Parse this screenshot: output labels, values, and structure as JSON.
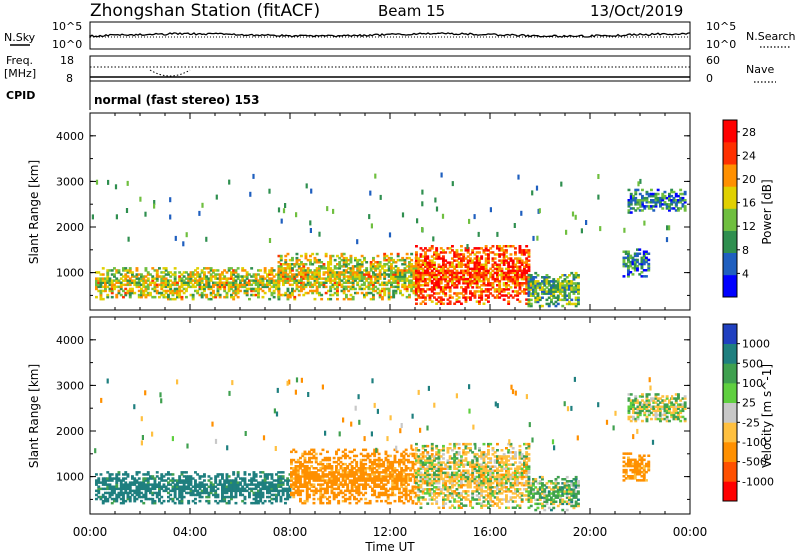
{
  "header": {
    "station": "Zhongshan Station (fitACF)",
    "beam": "Beam 15",
    "date": "13/Oct/2019"
  },
  "noise_panel": {
    "left_label": "N.Sky",
    "right_label": "N.Search",
    "ticks": [
      "10^5",
      "10^0"
    ]
  },
  "freq_panel": {
    "left_label_1": "Freq.",
    "left_label_2": "[MHz]",
    "left_ticks": [
      "18",
      "8"
    ],
    "right_label": "Nave",
    "right_ticks": [
      "60",
      "0"
    ]
  },
  "cpid": {
    "label": "CPID",
    "mode": "normal (fast stereo) 153"
  },
  "axes": {
    "ylabel": "Slant Range [km]",
    "xlabel": "Time UT",
    "y_ticks": [
      "4000",
      "3000",
      "2000",
      "1000"
    ],
    "x_ticks": [
      "00:00",
      "04:00",
      "08:00",
      "12:00",
      "16:00",
      "20:00",
      "00:00"
    ]
  },
  "chart_data": [
    {
      "type": "heatmap",
      "title": "",
      "xlabel": "Time UT",
      "ylabel": "Slant Range [km]",
      "x_range_hours": [
        0,
        24
      ],
      "y_range_km": [
        180,
        4500
      ],
      "colorbar": {
        "label": "Power [dB]",
        "ticks": [
          "28",
          "24",
          "20",
          "16",
          "12",
          "8",
          "4"
        ],
        "tick_values": [
          28,
          24,
          20,
          16,
          12,
          8,
          4
        ],
        "range": [
          0,
          30
        ],
        "colors": [
          "#0000ff",
          "#1f5fbf",
          "#2f8f4f",
          "#6fbf3f",
          "#e0d000",
          "#ff9000",
          "#ff3000",
          "#ff0000"
        ]
      },
      "echo_regions": [
        {
          "t_start": 0.2,
          "t_end": 7.5,
          "r_min": 400,
          "r_max": 1100,
          "level": 16
        },
        {
          "t_start": 7.5,
          "t_end": 13.0,
          "r_min": 400,
          "r_max": 1400,
          "level": 16
        },
        {
          "t_start": 13.0,
          "t_end": 17.5,
          "r_min": 300,
          "r_max": 1600,
          "level": 24
        },
        {
          "t_start": 17.5,
          "t_end": 19.5,
          "r_min": 250,
          "r_max": 1000,
          "level": 12
        },
        {
          "t_start": 21.5,
          "t_end": 23.8,
          "r_min": 2300,
          "r_max": 2800,
          "level": 8
        },
        {
          "t_start": 21.3,
          "t_end": 22.3,
          "r_min": 900,
          "r_max": 1500,
          "level": 8
        }
      ]
    },
    {
      "type": "heatmap",
      "title": "",
      "xlabel": "Time UT",
      "ylabel": "Slant Range [km]",
      "x_range_hours": [
        0,
        24
      ],
      "y_range_km": [
        180,
        4500
      ],
      "colorbar": {
        "label": "Velocity [m s^-1]",
        "ticks": [
          "1000",
          "500",
          "100",
          "25",
          "-25",
          "-100",
          "-500",
          "-1000"
        ],
        "tick_values": [
          1000,
          500,
          100,
          25,
          -25,
          -100,
          -500,
          -1000
        ],
        "colors": [
          "#2040c0",
          "#1f7f7f",
          "#3fa04f",
          "#5fcf3f",
          "#c8c8c8",
          "#ffc040",
          "#ff9000",
          "#ff5000",
          "#ff0000"
        ]
      },
      "echo_regions": [
        {
          "t_start": 0.2,
          "t_end": 8.0,
          "r_min": 400,
          "r_max": 1100,
          "level": 500
        },
        {
          "t_start": 8.0,
          "t_end": 13.0,
          "r_min": 400,
          "r_max": 1600,
          "level": -500
        },
        {
          "t_start": 13.0,
          "t_end": 17.5,
          "r_min": 300,
          "r_max": 1700,
          "level": -100
        },
        {
          "t_start": 17.5,
          "t_end": 19.5,
          "r_min": 250,
          "r_max": 1000,
          "level": 100
        },
        {
          "t_start": 21.5,
          "t_end": 23.8,
          "r_min": 2200,
          "r_max": 2800,
          "level": 0
        },
        {
          "t_start": 21.3,
          "t_end": 22.3,
          "r_min": 900,
          "r_max": 1500,
          "level": -500
        }
      ]
    }
  ]
}
